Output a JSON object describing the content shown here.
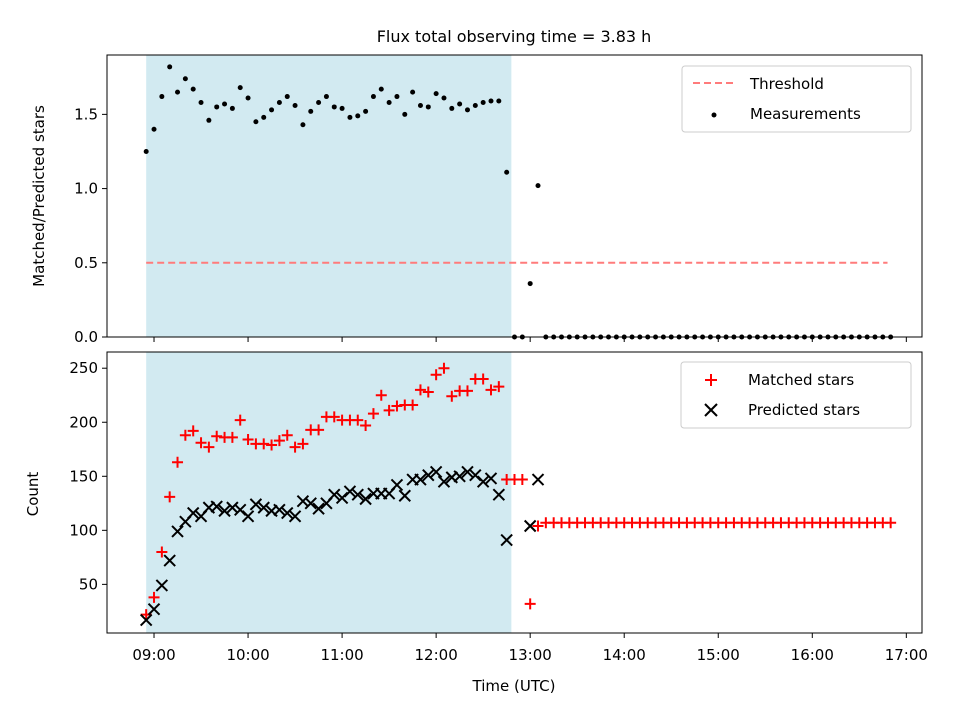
{
  "chart_data": [
    {
      "type": "scatter",
      "title": "Flux total observing time = 3.83 h",
      "xlabel": "",
      "ylabel": "Matched/Predicted stars",
      "ylim": [
        0,
        1.9
      ],
      "yticks": [
        "0.0",
        "0.5",
        "1.0",
        "1.5"
      ],
      "ytick_values": [
        0,
        0.5,
        1.0,
        1.5
      ],
      "legend_position": "top-right",
      "shaded_span": {
        "from": "08:55",
        "to": "12:48",
        "color": "#add8e6"
      },
      "threshold": {
        "name": "Threshold",
        "value": 0.5,
        "from": "08:55",
        "to": "16:48",
        "color": "#ff7b7b"
      },
      "series": [
        {
          "name": "Measurements",
          "color": "#000000",
          "marker": "dot",
          "x": [
            "08:55",
            "09:00",
            "09:05",
            "09:10",
            "09:15",
            "09:20",
            "09:25",
            "09:30",
            "09:35",
            "09:40",
            "09:45",
            "09:50",
            "09:55",
            "10:00",
            "10:05",
            "10:10",
            "10:15",
            "10:20",
            "10:25",
            "10:30",
            "10:35",
            "10:40",
            "10:45",
            "10:50",
            "10:55",
            "11:00",
            "11:05",
            "11:10",
            "11:15",
            "11:20",
            "11:25",
            "11:30",
            "11:35",
            "11:40",
            "11:45",
            "11:50",
            "11:55",
            "12:00",
            "12:05",
            "12:10",
            "12:15",
            "12:20",
            "12:25",
            "12:30",
            "12:35",
            "12:40",
            "12:45",
            "12:50",
            "12:55",
            "13:00",
            "13:05",
            "13:10",
            "13:15",
            "13:20",
            "13:25",
            "13:30",
            "13:35",
            "13:40",
            "13:45",
            "13:50",
            "13:55",
            "14:00",
            "14:05",
            "14:10",
            "14:15",
            "14:20",
            "14:25",
            "14:30",
            "14:35",
            "14:40",
            "14:45",
            "14:50",
            "14:55",
            "15:00",
            "15:05",
            "15:10",
            "15:15",
            "15:20",
            "15:25",
            "15:30",
            "15:35",
            "15:40",
            "15:45",
            "15:50",
            "15:55",
            "16:00",
            "16:05",
            "16:10",
            "16:15",
            "16:20",
            "16:25",
            "16:30",
            "16:35",
            "16:40",
            "16:45",
            "16:50"
          ],
          "y": [
            1.25,
            1.4,
            1.62,
            1.82,
            1.65,
            1.74,
            1.67,
            1.58,
            1.46,
            1.55,
            1.57,
            1.54,
            1.68,
            1.61,
            1.45,
            1.48,
            1.53,
            1.58,
            1.62,
            1.56,
            1.43,
            1.52,
            1.58,
            1.62,
            1.55,
            1.54,
            1.48,
            1.49,
            1.52,
            1.62,
            1.67,
            1.58,
            1.62,
            1.5,
            1.65,
            1.56,
            1.55,
            1.64,
            1.61,
            1.54,
            1.57,
            1.53,
            1.56,
            1.58,
            1.59,
            1.59,
            1.11,
            0.0,
            0.0,
            0.36,
            1.02,
            0.0,
            0.0,
            0.0,
            0.0,
            0.0,
            0.0,
            0.0,
            0.0,
            0.0,
            0.0,
            0.0,
            0.0,
            0.0,
            0.0,
            0.0,
            0.0,
            0.0,
            0.0,
            0.0,
            0.0,
            0.0,
            0.0,
            0.0,
            0.0,
            0.0,
            0.0,
            0.0,
            0.0,
            0.0,
            0.0,
            0.0,
            0.0,
            0.0,
            0.0,
            0.0,
            0.0,
            0.0,
            0.0,
            0.0,
            0.0,
            0.0,
            0.0,
            0.0,
            0.0,
            0.0
          ]
        }
      ]
    },
    {
      "type": "scatter",
      "title": "",
      "xlabel": "Time (UTC)",
      "ylabel": "Count",
      "ylim": [
        5,
        265
      ],
      "xlim": [
        "08:30",
        "17:10"
      ],
      "yticks": [
        "50",
        "100",
        "150",
        "200",
        "250"
      ],
      "ytick_values": [
        50,
        100,
        150,
        200,
        250
      ],
      "xticks": [
        "09:00",
        "10:00",
        "11:00",
        "12:00",
        "13:00",
        "14:00",
        "15:00",
        "16:00",
        "17:00"
      ],
      "legend_position": "top-right",
      "shaded_span": {
        "from": "08:55",
        "to": "12:48",
        "color": "#add8e6"
      },
      "series": [
        {
          "name": "Matched stars",
          "color": "#ff0000",
          "marker": "plus",
          "x": [
            "08:55",
            "09:00",
            "09:05",
            "09:10",
            "09:15",
            "09:20",
            "09:25",
            "09:30",
            "09:35",
            "09:40",
            "09:45",
            "09:50",
            "09:55",
            "10:00",
            "10:05",
            "10:10",
            "10:15",
            "10:20",
            "10:25",
            "10:30",
            "10:35",
            "10:40",
            "10:45",
            "10:50",
            "10:55",
            "11:00",
            "11:05",
            "11:10",
            "11:15",
            "11:20",
            "11:25",
            "11:30",
            "11:35",
            "11:40",
            "11:45",
            "11:50",
            "11:55",
            "12:00",
            "12:05",
            "12:10",
            "12:15",
            "12:20",
            "12:25",
            "12:30",
            "12:35",
            "12:40",
            "12:45",
            "12:50",
            "12:55",
            "13:00",
            "13:05",
            "13:10",
            "13:15",
            "13:20",
            "13:25",
            "13:30",
            "13:35",
            "13:40",
            "13:45",
            "13:50",
            "13:55",
            "14:00",
            "14:05",
            "14:10",
            "14:15",
            "14:20",
            "14:25",
            "14:30",
            "14:35",
            "14:40",
            "14:45",
            "14:50",
            "14:55",
            "15:00",
            "15:05",
            "15:10",
            "15:15",
            "15:20",
            "15:25",
            "15:30",
            "15:35",
            "15:40",
            "15:45",
            "15:50",
            "15:55",
            "16:00",
            "16:05",
            "16:10",
            "16:15",
            "16:20",
            "16:25",
            "16:30",
            "16:35",
            "16:40",
            "16:45",
            "16:50"
          ],
          "y": [
            22,
            38,
            80,
            131,
            163,
            188,
            192,
            181,
            177,
            187,
            186,
            186,
            202,
            184,
            180,
            180,
            179,
            183,
            188,
            177,
            180,
            193,
            193,
            205,
            205,
            202,
            202,
            202,
            197,
            208,
            225,
            211,
            215,
            216,
            216,
            230,
            228,
            244,
            250,
            224,
            229,
            229,
            240,
            240,
            230,
            233,
            147,
            147,
            147,
            32,
            104,
            107,
            107,
            107,
            107,
            107,
            107,
            107,
            107,
            107,
            107,
            107,
            107,
            107,
            107,
            107,
            107,
            107,
            107,
            107,
            107,
            107,
            107,
            107,
            107,
            107,
            107,
            107,
            107,
            107,
            107,
            107,
            107,
            107,
            107,
            107,
            107,
            107,
            107,
            107,
            107,
            107,
            107,
            107,
            107,
            107
          ]
        },
        {
          "name": "Predicted stars",
          "color": "#000000",
          "marker": "x",
          "x": [
            "08:55",
            "09:00",
            "09:05",
            "09:10",
            "09:15",
            "09:20",
            "09:25",
            "09:30",
            "09:35",
            "09:40",
            "09:45",
            "09:50",
            "09:55",
            "10:00",
            "10:05",
            "10:10",
            "10:15",
            "10:20",
            "10:25",
            "10:30",
            "10:35",
            "10:40",
            "10:45",
            "10:50",
            "10:55",
            "11:00",
            "11:05",
            "11:10",
            "11:15",
            "11:20",
            "11:25",
            "11:30",
            "11:35",
            "11:40",
            "11:45",
            "11:50",
            "11:55",
            "12:00",
            "12:05",
            "12:10",
            "12:15",
            "12:20",
            "12:25",
            "12:30",
            "12:35",
            "12:40",
            "12:45",
            "13:00",
            "13:05"
          ],
          "y": [
            17,
            27,
            49,
            72,
            99,
            108,
            116,
            113,
            121,
            122,
            118,
            121,
            119,
            113,
            124,
            121,
            118,
            119,
            116,
            113,
            127,
            125,
            120,
            125,
            133,
            130,
            136,
            133,
            129,
            134,
            134,
            134,
            142,
            132,
            147,
            147,
            151,
            154,
            145,
            149,
            150,
            154,
            151,
            145,
            148,
            133,
            91,
            104,
            147
          ]
        }
      ]
    }
  ]
}
